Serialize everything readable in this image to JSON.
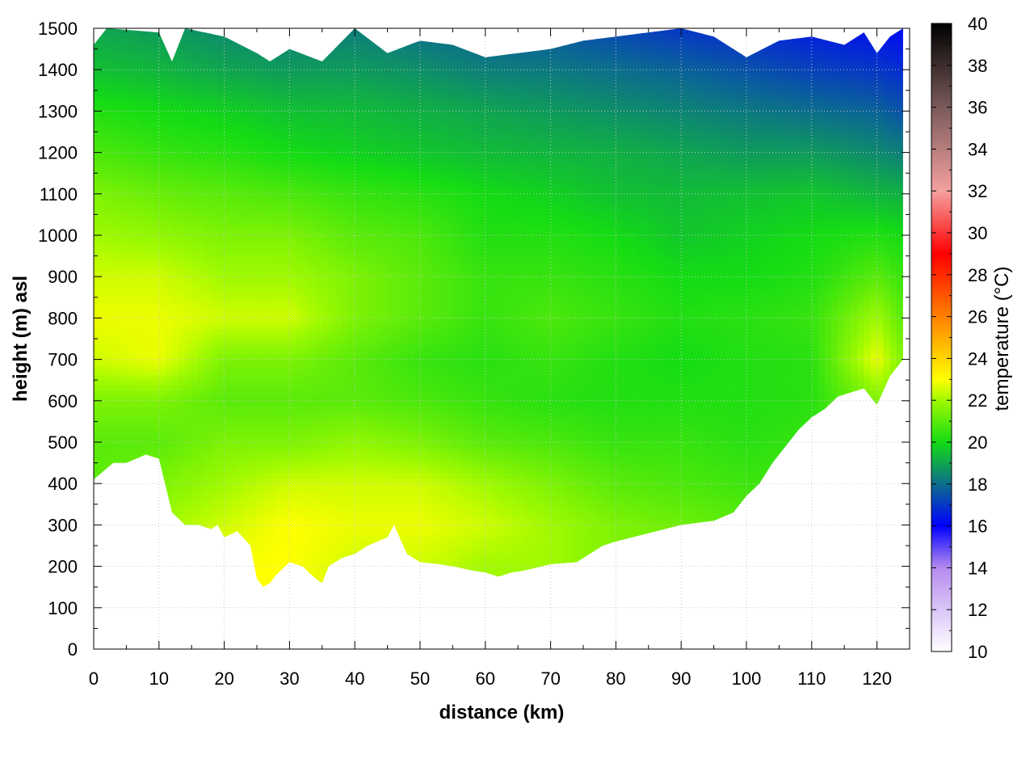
{
  "chart_data": {
    "type": "heatmap",
    "title": "",
    "xlabel": "distance (km)",
    "ylabel": "height (m) asl",
    "colorbar_label": "temperature (°C)",
    "xlim": [
      0,
      125
    ],
    "ylim": [
      0,
      1500
    ],
    "x_ticks": [
      "0",
      "10",
      "20",
      "30",
      "40",
      "50",
      "60",
      "70",
      "80",
      "90",
      "100",
      "110",
      "120"
    ],
    "y_ticks": [
      "0",
      "100",
      "200",
      "300",
      "400",
      "500",
      "600",
      "700",
      "800",
      "900",
      "1000",
      "1100",
      "1200",
      "1300",
      "1400",
      "1500"
    ],
    "colorbar_range": [
      10,
      40
    ],
    "colorbar_ticks": [
      "10",
      "12",
      "14",
      "16",
      "18",
      "20",
      "22",
      "24",
      "26",
      "28",
      "30",
      "32",
      "34",
      "36",
      "38",
      "40"
    ],
    "grid": true,
    "colormap": [
      {
        "t": 10,
        "color": "#ffffff"
      },
      {
        "t": 14,
        "color": "#b58bef"
      },
      {
        "t": 16,
        "color": "#0000ff"
      },
      {
        "t": 18,
        "color": "#0c6e8c"
      },
      {
        "t": 20,
        "color": "#14dc14"
      },
      {
        "t": 22,
        "color": "#a0fa00"
      },
      {
        "t": 23,
        "color": "#ffff00"
      },
      {
        "t": 26,
        "color": "#ff8000"
      },
      {
        "t": 29,
        "color": "#ff0000"
      },
      {
        "t": 32,
        "color": "#f5a0a0"
      },
      {
        "t": 36,
        "color": "#7a5a5a"
      },
      {
        "t": 40,
        "color": "#000000"
      }
    ],
    "terrain_profile": {
      "distance": [
        0,
        3,
        5,
        8,
        10,
        12,
        14,
        16,
        18,
        19,
        20,
        22,
        24,
        25,
        26,
        27,
        28,
        30,
        32,
        34,
        35,
        36,
        38,
        40,
        42,
        45,
        46,
        48,
        50,
        53,
        55,
        58,
        60,
        62,
        64,
        66,
        70,
        74,
        78,
        80,
        85,
        90,
        95,
        98,
        100,
        102,
        104,
        106,
        108,
        110,
        112,
        114,
        116,
        118,
        120,
        122,
        124
      ],
      "height": [
        410,
        450,
        450,
        470,
        460,
        330,
        300,
        300,
        290,
        300,
        270,
        285,
        250,
        170,
        150,
        160,
        180,
        210,
        200,
        170,
        160,
        200,
        220,
        230,
        250,
        270,
        300,
        230,
        210,
        205,
        200,
        190,
        185,
        175,
        185,
        190,
        205,
        210,
        250,
        260,
        280,
        300,
        310,
        330,
        370,
        400,
        450,
        490,
        530,
        560,
        580,
        610,
        620,
        630,
        590,
        660,
        700
      ]
    },
    "top_boundary": {
      "distance": [
        0,
        2,
        10,
        12,
        14,
        20,
        25,
        27,
        30,
        35,
        40,
        45,
        50,
        55,
        60,
        65,
        70,
        75,
        80,
        85,
        90,
        95,
        100,
        105,
        110,
        115,
        118,
        120,
        122,
        124
      ],
      "height": [
        1460,
        1500,
        1490,
        1420,
        1500,
        1480,
        1440,
        1420,
        1450,
        1420,
        1500,
        1440,
        1470,
        1460,
        1430,
        1440,
        1450,
        1470,
        1480,
        1490,
        1500,
        1480,
        1430,
        1470,
        1480,
        1460,
        1490,
        1440,
        1480,
        1500
      ]
    },
    "temperature_field": {
      "distance": [
        0,
        10,
        20,
        30,
        40,
        50,
        60,
        70,
        80,
        90,
        100,
        110,
        120,
        124
      ],
      "height": [
        0,
        200,
        300,
        400,
        500,
        600,
        700,
        800,
        900,
        1000,
        1100,
        1200,
        1300,
        1400,
        1500
      ],
      "values": [
        [
          21.5,
          22.5,
          23.0,
          23.0,
          22.5,
          22.5,
          22.0,
          22.0,
          21.5,
          21.5,
          21.0,
          21.0,
          21.0,
          21.0
        ],
        [
          21.5,
          22.5,
          23.0,
          23.0,
          22.5,
          22.5,
          22.0,
          22.0,
          21.5,
          21.5,
          21.0,
          21.0,
          21.0,
          21.0
        ],
        [
          21.5,
          22.0,
          22.5,
          23.0,
          22.8,
          22.8,
          22.5,
          22.0,
          21.5,
          21.3,
          21.0,
          21.0,
          21.0,
          21.0
        ],
        [
          21.0,
          21.5,
          22.0,
          22.5,
          22.5,
          22.5,
          22.0,
          21.5,
          21.0,
          20.8,
          20.6,
          20.6,
          20.8,
          21.0
        ],
        [
          21.0,
          21.0,
          21.5,
          21.5,
          21.8,
          21.5,
          21.0,
          20.8,
          20.5,
          20.5,
          20.3,
          20.5,
          21.0,
          21.0
        ],
        [
          21.5,
          21.5,
          21.0,
          21.0,
          21.0,
          20.8,
          20.5,
          20.3,
          20.2,
          20.2,
          20.2,
          20.3,
          21.5,
          21.5
        ],
        [
          22.5,
          22.8,
          21.5,
          21.5,
          21.0,
          20.5,
          20.3,
          20.5,
          20.2,
          20.0,
          20.2,
          20.3,
          22.8,
          21.5
        ],
        [
          22.8,
          22.8,
          22.5,
          22.5,
          21.5,
          21.0,
          20.5,
          20.8,
          20.5,
          20.2,
          20.3,
          20.5,
          22.0,
          21.0
        ],
        [
          22.5,
          22.5,
          22.0,
          22.0,
          21.5,
          21.0,
          20.5,
          20.5,
          20.3,
          20.0,
          20.0,
          20.2,
          21.0,
          20.5
        ],
        [
          22.0,
          21.8,
          21.5,
          21.5,
          21.0,
          20.8,
          20.2,
          20.2,
          20.0,
          19.6,
          19.8,
          20.0,
          20.2,
          20.0
        ],
        [
          21.5,
          21.2,
          21.0,
          20.8,
          20.5,
          20.3,
          20.0,
          19.8,
          19.5,
          19.4,
          19.5,
          19.6,
          19.3,
          19.2
        ],
        [
          20.8,
          20.5,
          20.3,
          20.0,
          19.8,
          19.6,
          19.4,
          19.3,
          19.2,
          19.0,
          18.8,
          18.8,
          18.5,
          18.3
        ],
        [
          20.2,
          20.0,
          19.8,
          19.5,
          19.4,
          19.2,
          19.0,
          18.8,
          18.6,
          18.4,
          18.2,
          18.0,
          17.8,
          17.5
        ],
        [
          19.5,
          19.3,
          19.0,
          18.8,
          18.8,
          18.6,
          18.3,
          18.2,
          18.0,
          17.8,
          17.5,
          17.2,
          17.0,
          16.8
        ],
        [
          19.0,
          18.8,
          18.5,
          18.3,
          18.3,
          18.0,
          17.8,
          17.6,
          17.3,
          17.0,
          16.8,
          16.5,
          16.3,
          16.2
        ]
      ]
    }
  }
}
